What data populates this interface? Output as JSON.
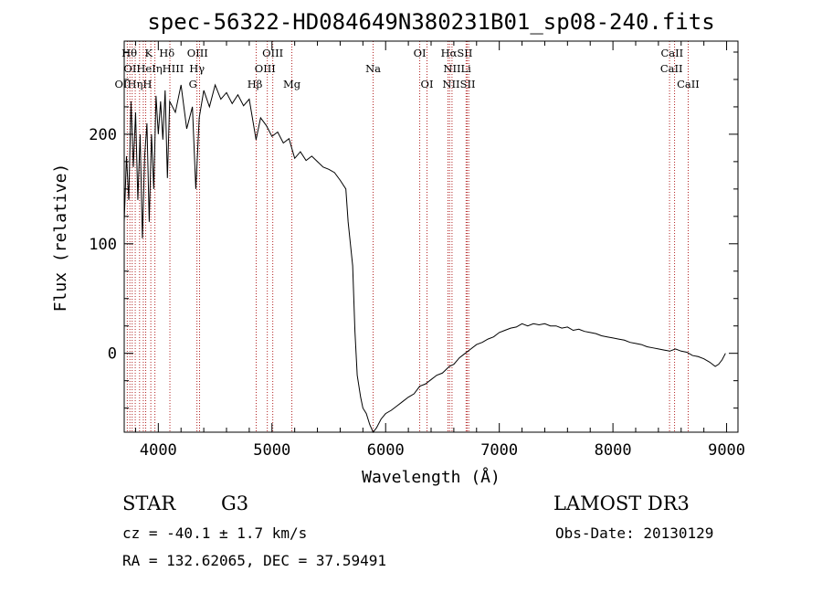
{
  "chart_data": {
    "type": "line",
    "title": "spec-56322-HD084649N380231B01_sp08-240.fits",
    "xlabel": "Wavelength (Å)",
    "ylabel": "Flux (relative)",
    "xlim": [
      3700,
      9100
    ],
    "ylim": [
      -72,
      285
    ],
    "x_ticks": [
      4000,
      5000,
      6000,
      7000,
      8000,
      9000
    ],
    "y_ticks": [
      0,
      100,
      200
    ],
    "grid": false,
    "series": [
      {
        "color": "#000000",
        "points": [
          [
            3700,
            120
          ],
          [
            3720,
            180
          ],
          [
            3740,
            140
          ],
          [
            3760,
            230
          ],
          [
            3780,
            170
          ],
          [
            3800,
            220
          ],
          [
            3820,
            140
          ],
          [
            3840,
            200
          ],
          [
            3860,
            105
          ],
          [
            3880,
            180
          ],
          [
            3900,
            210
          ],
          [
            3920,
            120
          ],
          [
            3940,
            200
          ],
          [
            3960,
            150
          ],
          [
            3980,
            235
          ],
          [
            4000,
            200
          ],
          [
            4020,
            230
          ],
          [
            4040,
            195
          ],
          [
            4060,
            240
          ],
          [
            4080,
            160
          ],
          [
            4100,
            230
          ],
          [
            4150,
            220
          ],
          [
            4200,
            245
          ],
          [
            4250,
            205
          ],
          [
            4300,
            225
          ],
          [
            4330,
            150
          ],
          [
            4360,
            215
          ],
          [
            4400,
            240
          ],
          [
            4450,
            225
          ],
          [
            4500,
            245
          ],
          [
            4550,
            232
          ],
          [
            4600,
            238
          ],
          [
            4650,
            228
          ],
          [
            4700,
            236
          ],
          [
            4750,
            226
          ],
          [
            4800,
            232
          ],
          [
            4860,
            195
          ],
          [
            4900,
            215
          ],
          [
            4950,
            208
          ],
          [
            5000,
            198
          ],
          [
            5050,
            202
          ],
          [
            5100,
            192
          ],
          [
            5150,
            196
          ],
          [
            5200,
            178
          ],
          [
            5250,
            184
          ],
          [
            5300,
            176
          ],
          [
            5350,
            180
          ],
          [
            5400,
            175
          ],
          [
            5450,
            170
          ],
          [
            5500,
            168
          ],
          [
            5550,
            165
          ],
          [
            5600,
            158
          ],
          [
            5650,
            150
          ],
          [
            5670,
            120
          ],
          [
            5690,
            100
          ],
          [
            5710,
            80
          ],
          [
            5730,
            20
          ],
          [
            5750,
            -20
          ],
          [
            5780,
            -40
          ],
          [
            5800,
            -50
          ],
          [
            5830,
            -55
          ],
          [
            5860,
            -65
          ],
          [
            5890,
            -72
          ],
          [
            5920,
            -68
          ],
          [
            5960,
            -60
          ],
          [
            6000,
            -55
          ],
          [
            6050,
            -52
          ],
          [
            6100,
            -48
          ],
          [
            6150,
            -44
          ],
          [
            6200,
            -40
          ],
          [
            6250,
            -37
          ],
          [
            6300,
            -30
          ],
          [
            6350,
            -28
          ],
          [
            6400,
            -24
          ],
          [
            6450,
            -20
          ],
          [
            6500,
            -18
          ],
          [
            6560,
            -12
          ],
          [
            6600,
            -10
          ],
          [
            6650,
            -4
          ],
          [
            6700,
            0
          ],
          [
            6750,
            4
          ],
          [
            6800,
            8
          ],
          [
            6850,
            10
          ],
          [
            6900,
            13
          ],
          [
            6950,
            15
          ],
          [
            7000,
            19
          ],
          [
            7050,
            21
          ],
          [
            7100,
            23
          ],
          [
            7150,
            24
          ],
          [
            7200,
            27
          ],
          [
            7250,
            25
          ],
          [
            7300,
            27
          ],
          [
            7350,
            26
          ],
          [
            7400,
            27
          ],
          [
            7450,
            25
          ],
          [
            7500,
            25
          ],
          [
            7550,
            23
          ],
          [
            7600,
            24
          ],
          [
            7650,
            21
          ],
          [
            7700,
            22
          ],
          [
            7750,
            20
          ],
          [
            7800,
            19
          ],
          [
            7850,
            18
          ],
          [
            7900,
            16
          ],
          [
            7950,
            15
          ],
          [
            8000,
            14
          ],
          [
            8050,
            13
          ],
          [
            8100,
            12
          ],
          [
            8150,
            10
          ],
          [
            8200,
            9
          ],
          [
            8250,
            8
          ],
          [
            8300,
            6
          ],
          [
            8350,
            5
          ],
          [
            8400,
            4
          ],
          [
            8450,
            3
          ],
          [
            8500,
            2
          ],
          [
            8550,
            4
          ],
          [
            8600,
            2
          ],
          [
            8650,
            1
          ],
          [
            8700,
            -2
          ],
          [
            8750,
            -3
          ],
          [
            8800,
            -5
          ],
          [
            8850,
            -8
          ],
          [
            8900,
            -12
          ],
          [
            8930,
            -10
          ],
          [
            8960,
            -6
          ],
          [
            8990,
            0
          ]
        ]
      }
    ],
    "line_markers": {
      "color": "#b22222",
      "style": "dotted",
      "wavelengths": [
        3727,
        3750,
        3770,
        3797,
        3835,
        3868,
        3889,
        3934,
        3970,
        4102,
        4340,
        4363,
        4861,
        4959,
        5007,
        5175,
        5890,
        6300,
        6364,
        6548,
        6563,
        6584,
        6708,
        6717,
        6731,
        8498,
        8542,
        8662
      ]
    },
    "line_labels": [
      {
        "text": "Hθ",
        "wavelength": 3745,
        "row": 1
      },
      {
        "text": "K",
        "wavelength": 3915,
        "row": 1
      },
      {
        "text": "Hδ",
        "wavelength": 4075,
        "row": 1
      },
      {
        "text": "OIII",
        "wavelength": 4345,
        "row": 1
      },
      {
        "text": "OIII",
        "wavelength": 5007,
        "row": 1
      },
      {
        "text": "OI",
        "wavelength": 6300,
        "row": 1
      },
      {
        "text": "HαSII",
        "wavelength": 6625,
        "row": 1
      },
      {
        "text": "CaII",
        "wavelength": 8520,
        "row": 1
      },
      {
        "text": "OIHeIηHIII",
        "wavelength": 3960,
        "row": 2
      },
      {
        "text": "Hγ",
        "wavelength": 4340,
        "row": 2
      },
      {
        "text": "OIII",
        "wavelength": 4940,
        "row": 2
      },
      {
        "text": "Na",
        "wavelength": 5890,
        "row": 2
      },
      {
        "text": "NIILi",
        "wavelength": 6630,
        "row": 2
      },
      {
        "text": "CaII",
        "wavelength": 8515,
        "row": 2
      },
      {
        "text": "OIHηH",
        "wavelength": 3780,
        "row": 3
      },
      {
        "text": "G",
        "wavelength": 4304,
        "row": 3
      },
      {
        "text": "Hβ",
        "wavelength": 4850,
        "row": 3
      },
      {
        "text": "Mg",
        "wavelength": 5175,
        "row": 3
      },
      {
        "text": "OI",
        "wavelength": 6364,
        "row": 3
      },
      {
        "text": "NIISII",
        "wavelength": 6645,
        "row": 3
      },
      {
        "text": "CaII",
        "wavelength": 8662,
        "row": 3
      }
    ]
  },
  "info": {
    "object_class": "STAR",
    "subclass": "G3",
    "redshift": "cz = -40.1 ± 1.7 km/s",
    "coordinates": "RA = 132.62065, DEC =  37.59491",
    "survey": "LAMOST DR3",
    "obs_date": "Obs-Date: 20130129"
  }
}
